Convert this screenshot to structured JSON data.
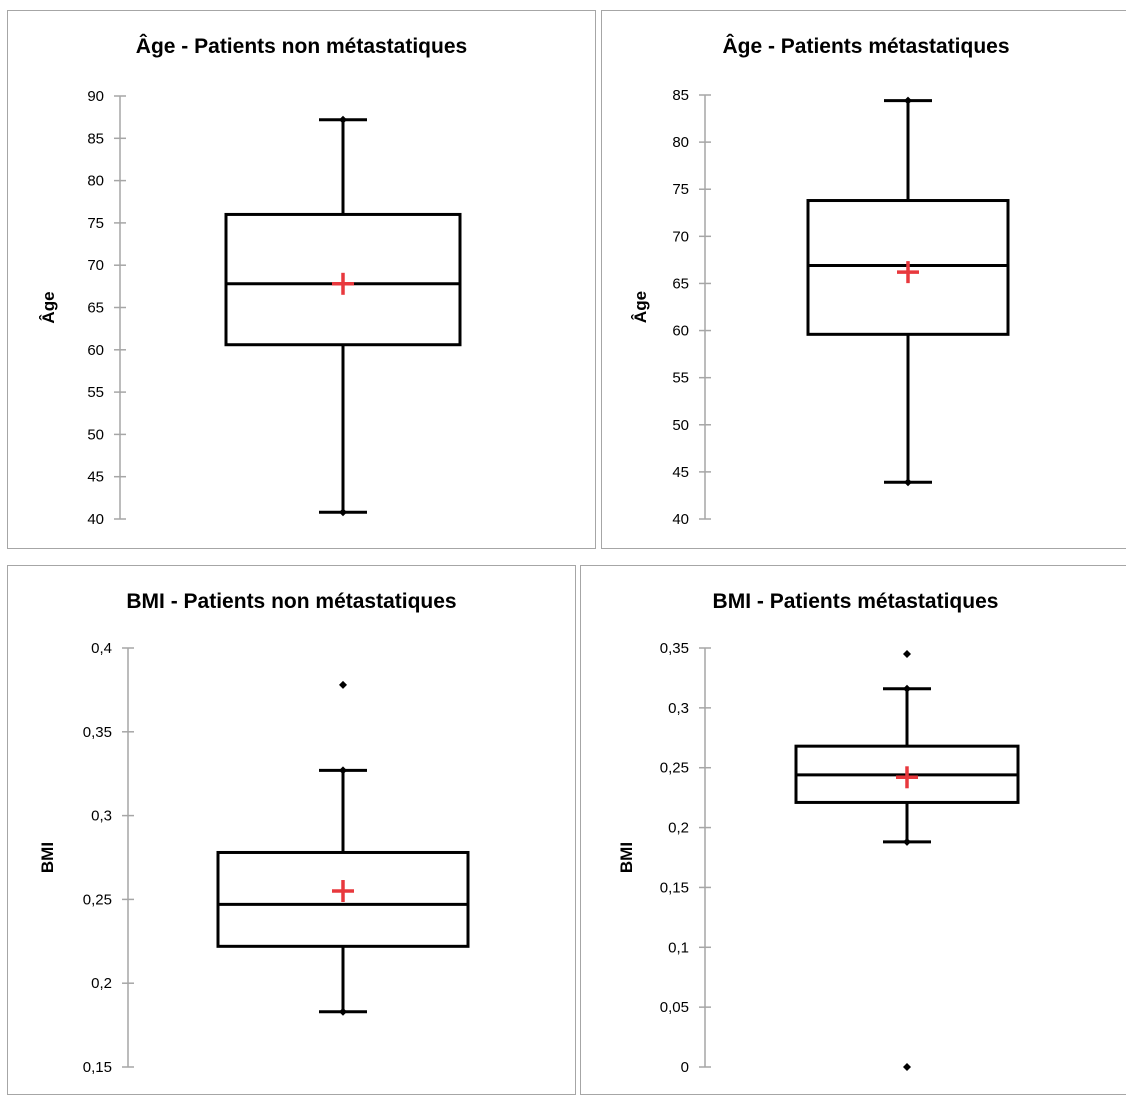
{
  "chart_data": [
    {
      "type": "box",
      "title": "Âge - Patients non métastatiques",
      "ylabel": "Âge",
      "ylim": [
        40,
        90
      ],
      "yticks": [
        "40",
        "45",
        "50",
        "55",
        "60",
        "65",
        "70",
        "75",
        "80",
        "85",
        "90"
      ],
      "ytick_values": [
        40,
        45,
        50,
        55,
        60,
        65,
        70,
        75,
        80,
        85,
        90
      ],
      "box": {
        "min": 40.8,
        "q1": 60.6,
        "median": 67.8,
        "q3": 76.0,
        "max": 87.2,
        "mean": 67.8,
        "outliers": []
      },
      "colors": {
        "mean": "#e8383d",
        "box": "#000000",
        "axis": "#a6a6a6"
      }
    },
    {
      "type": "box",
      "title": "Âge - Patients métastatiques",
      "ylabel": "Âge",
      "ylim": [
        40,
        85
      ],
      "yticks": [
        "40",
        "45",
        "50",
        "55",
        "60",
        "65",
        "70",
        "75",
        "80",
        "85"
      ],
      "ytick_values": [
        40,
        45,
        50,
        55,
        60,
        65,
        70,
        75,
        80,
        85
      ],
      "box": {
        "min": 43.9,
        "q1": 59.6,
        "median": 66.9,
        "q3": 73.8,
        "max": 84.4,
        "mean": 66.2,
        "outliers": []
      },
      "colors": {
        "mean": "#e8383d",
        "box": "#000000",
        "axis": "#a6a6a6"
      }
    },
    {
      "type": "box",
      "title": "BMI - Patients non métastatiques",
      "ylabel": "BMI",
      "ylim": [
        0.15,
        0.4
      ],
      "yticks": [
        "0,15",
        "0,2",
        "0,25",
        "0,3",
        "0,35",
        "0,4"
      ],
      "ytick_values": [
        0.15,
        0.2,
        0.25,
        0.3,
        0.35,
        0.4
      ],
      "box": {
        "min": 0.183,
        "q1": 0.222,
        "median": 0.247,
        "q3": 0.278,
        "max": 0.327,
        "mean": 0.255,
        "outliers": [
          0.378
        ]
      },
      "colors": {
        "mean": "#e8383d",
        "box": "#000000",
        "axis": "#a6a6a6"
      }
    },
    {
      "type": "box",
      "title": "BMI - Patients métastatiques",
      "ylabel": "BMI",
      "ylim": [
        0,
        0.35
      ],
      "yticks": [
        "0",
        "0,05",
        "0,1",
        "0,15",
        "0,2",
        "0,25",
        "0,3",
        "0,35"
      ],
      "ytick_values": [
        0,
        0.05,
        0.1,
        0.15,
        0.2,
        0.25,
        0.3,
        0.35
      ],
      "box": {
        "min": 0.188,
        "q1": 0.221,
        "median": 0.244,
        "q3": 0.268,
        "max": 0.316,
        "mean": 0.242,
        "outliers": [
          0.345,
          0.0
        ]
      },
      "colors": {
        "mean": "#e8383d",
        "box": "#000000",
        "axis": "#a6a6a6"
      }
    }
  ]
}
